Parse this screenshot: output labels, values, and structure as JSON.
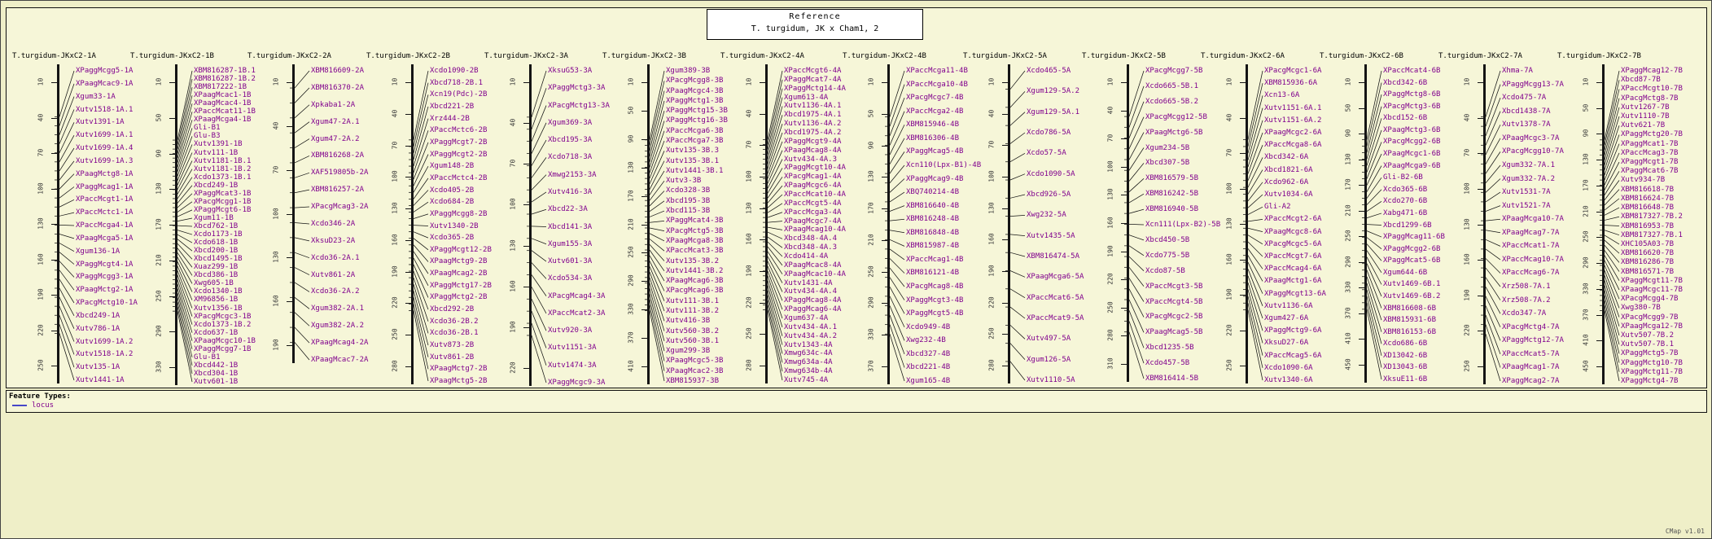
{
  "reference": {
    "title": "Reference",
    "subtitle": "T. turgidum, JK x Cham1, 2"
  },
  "footer": {
    "feature_types_label": "Feature Types:",
    "legend": [
      {
        "label": "locus",
        "type": "line"
      }
    ],
    "version": "CMap v1.01"
  },
  "colors": {
    "background": "#efefc8",
    "panel": "#f6f6d8",
    "locus_text": "#80008d",
    "line": "#141414",
    "legend_line": "#4848c8",
    "border": "#000000"
  },
  "maps": [
    {
      "name": "T.turgidum-JKxC2-1A",
      "ticks": [
        10,
        40,
        70,
        100,
        130,
        160,
        190,
        220,
        250
      ],
      "loci": [
        "XPaggMcgg5-1A",
        "XPaagMcac9-1A",
        "Xgum33-1A",
        "Xutv1518-1A.1",
        "Xutv1391-1A",
        "Xutv1699-1A.1",
        "Xutv1699-1A.4",
        "Xutv1699-1A.3",
        "XPaagMctg8-1A",
        "XPaggMcag1-1A",
        "XPaccMcgt1-1A",
        "XPaccMctc1-1A",
        "XPaccMcga4-1A",
        "XPaagMcga5-1A",
        "Xgum136-1A",
        "XPaggMcgt4-1A",
        "XPaggMcgg3-1A",
        "XPaagMctg2-1A",
        "XPacgMctg10-1A",
        "Xbcd249-1A",
        "Xutv786-1A",
        "Xutv1699-1A.2",
        "Xutv1518-1A.2",
        "Xutv135-1A",
        "Xutv1441-1A"
      ]
    },
    {
      "name": "T.turgidum-JKxC2-1B",
      "ticks": [
        10,
        50,
        90,
        130,
        170,
        210,
        250,
        290,
        330
      ],
      "loci": [
        "XBM816287-1B.1",
        "XBM816287-1B.2",
        "XBM817222-1B",
        "XPaagMcac1-1B",
        "XPaagMcac4-1B",
        "XPaccMcat11-1B",
        "XPaagMcga4-1B",
        "Gli-B1",
        "Glu-B3",
        "Xutv1391-1B",
        "Xutv111-1B",
        "Xutv1181-1B.1",
        "Xutv1181-1B.2",
        "Xcdo1373-1B.1",
        "Xbcd249-1B",
        "XPaggMcat3-1B",
        "XPacgMcgg1-1B",
        "XPaggMcgt6-1B",
        "Xgum11-1B",
        "Xbcd762-1B",
        "Xcdo1173-1B",
        "Xcdo618-1B",
        "Xbcd200-1B",
        "Xbcd1495-1B",
        "Xuaz299-1B",
        "Xbcd386-1B",
        "Xwg605-1B",
        "Xcdo1340-1B",
        "XM96856-1B",
        "Xutv1356-1B",
        "XPacgMcgc3-1B",
        "Xcdo1373-1B.2",
        "Xcdo637-1B",
        "XPaagMcgc10-1B",
        "XPaggMcgg7-1B",
        "Glu-B1",
        "Xbcd442-1B",
        "Xbcd304-1B",
        "Xutv601-1B"
      ]
    },
    {
      "name": "T.turgidum-JKxC2-2A",
      "ticks": [
        10,
        40,
        70,
        100,
        130,
        160,
        190
      ],
      "loci": [
        "XBM816609-2A",
        "XBM816370-2A",
        "Xpkaba1-2A",
        "Xgum47-2A.1",
        "Xgum47-2A.2",
        "XBM816268-2A",
        "XAF519805b-2A",
        "XBM816257-2A",
        "XPacgMcag3-2A",
        "Xcdo346-2A",
        "XksuD23-2A",
        "Xcdo36-2A.1",
        "Xutv861-2A",
        "Xcdo36-2A.2",
        "Xgum382-2A.1",
        "Xgum382-2A.2",
        "XPaagMcag4-2A",
        "XPaagMcac7-2A"
      ]
    },
    {
      "name": "T.turgidum-JKxC2-2B",
      "ticks": [
        10,
        40,
        70,
        100,
        130,
        160,
        190,
        220,
        250,
        280
      ],
      "loci": [
        "Xcdo1090-2B",
        "Xbcd718-2B.1",
        "Xcn19(Pdc)-2B",
        "Xbcd221-2B",
        "Xrz444-2B",
        "XPaccMctc6-2B",
        "XPaggMcgt7-2B",
        "XPaggMcgt2-2B",
        "Xgum148-2B",
        "XPaccMctc4-2B",
        "Xcdo405-2B",
        "Xcdo684-2B",
        "XPaggMcgg8-2B",
        "Xutv1340-2B",
        "Xcdo365-2B",
        "XPaggMcgt12-2B",
        "XPaagMctg9-2B",
        "XPaagMcag2-2B",
        "XPaggMctg17-2B",
        "XPaggMctg2-2B",
        "Xbcd292-2B",
        "Xcdo36-2B.2",
        "Xcdo36-2B.1",
        "Xutv873-2B",
        "Xutv861-2B",
        "XPaagMctg7-2B",
        "XPaagMctg5-2B"
      ]
    },
    {
      "name": "T.turgidum-JKxC2-3A",
      "ticks": [
        10,
        40,
        70,
        100,
        130,
        160,
        190,
        220
      ],
      "loci": [
        "XksuG53-3A",
        "XPaggMctg3-3A",
        "XPacgMctg13-3A",
        "Xgum369-3A",
        "Xbcd195-3A",
        "Xcdo718-3A",
        "Xmwg2153-3A",
        "Xutv416-3A",
        "Xbcd22-3A",
        "Xbcd141-3A",
        "Xgum155-3A",
        "Xutv601-3A",
        "Xcdo534-3A",
        "XPacgMcag4-3A",
        "XPaccMcat2-3A",
        "Xutv920-3A",
        "Xutv1151-3A",
        "Xutv1474-3A",
        "XPaggMcgc9-3A"
      ]
    },
    {
      "name": "T.turgidum-JKxC2-3B",
      "ticks": [
        10,
        50,
        90,
        130,
        170,
        210,
        250,
        290,
        330,
        370,
        410
      ],
      "loci": [
        "Xgum389-3B",
        "XPacgMcgg8-3B",
        "XPaagMcgc4-3B",
        "XPaggMctg1-3B",
        "XPaggMctg15-3B",
        "XPaggMctg16-3B",
        "XPaccMcga6-3B",
        "XPaccMcga7-3B",
        "Xutv135-3B.3",
        "Xutv135-3B.1",
        "Xutv1441-3B.1",
        "Xutv3-3B",
        "Xcdo328-3B",
        "Xbcd195-3B",
        "Xbcd115-3B",
        "XPaggMcat4-3B",
        "XPacgMctg5-3B",
        "XPaagMcga8-3B",
        "XPaccMcat3-3B",
        "Xutv135-3B.2",
        "Xutv1441-3B.2",
        "XPaagMcag6-3B",
        "XPacgMcag6-3B",
        "Xutv111-3B.1",
        "Xutv111-3B.2",
        "Xutv416-3B",
        "Xutv560-3B.2",
        "Xutv560-3B.1",
        "Xgum299-3B",
        "XPaagMcgc5-3B",
        "XPaagMcac2-3B",
        "XBM815937-3B"
      ]
    },
    {
      "name": "T.turgidum-JKxC2-4A",
      "ticks": [
        10,
        40,
        70,
        100,
        130,
        160,
        190,
        220,
        250,
        280
      ],
      "loci": [
        "XPaccMcgt6-4A",
        "XPaggMcat7-4A",
        "XPaggMctg14-4A",
        "Xgum613-4A",
        "Xutv1136-4A.1",
        "Xbcd1975-4A.1",
        "Xutv1136-4A.2",
        "Xbcd1975-4A.2",
        "XPaggMcgt9-4A",
        "XPaagMcag8-4A",
        "Xutv434-4A.3",
        "XPaggMcgt10-4A",
        "XPacgMcag1-4A",
        "XPaagMcgc6-4A",
        "XPaccMcat10-4A",
        "XPaccMcgt5-4A",
        "XPaccMcga3-4A",
        "XPaagMcgc7-4A",
        "XPaagMcag10-4A",
        "Xbcd348-4A.4",
        "Xbcd348-4A.3",
        "Xcdo414-4A",
        "XPaagMcac8-4A",
        "XPaagMcac10-4A",
        "Xutv1431-4A",
        "Xutv434-4A.4",
        "XPaggMcag8-4A",
        "XPaggMcag6-4A",
        "Xgum637-4A",
        "Xutv434-4A.1",
        "Xutv434-4A.2",
        "Xutv1343-4A",
        "Xmwg634c-4A",
        "Xmwg634a-4A",
        "Xmwg634b-4A",
        "Xutv745-4A"
      ]
    },
    {
      "name": "T.turgidum-JKxC2-4B",
      "ticks": [
        10,
        50,
        90,
        130,
        170,
        210,
        250,
        290,
        330,
        370
      ],
      "loci": [
        "XPaccMcga11-4B",
        "XPaccMcga10-4B",
        "XPacgMcgc7-4B",
        "XPaccMcga2-4B",
        "XBM815946-4B",
        "XBM816306-4B",
        "XPaggMcag5-4B",
        "Xcn110(Lpx-B1)-4B",
        "XPaggMcag9-4B",
        "XBQ740214-4B",
        "XBM816640-4B",
        "XBM816248-4B",
        "XBM816848-4B",
        "XBM815987-4B",
        "XPaccMcag1-4B",
        "XBM816121-4B",
        "XPacgMcag8-4B",
        "XPaggMcgt3-4B",
        "XPaggMcgt5-4B",
        "Xcdo949-4B",
        "Xwg232-4B",
        "Xbcd327-4B",
        "Xbcd221-4B",
        "Xgum165-4B"
      ]
    },
    {
      "name": "T.turgidum-JKxC2-5A",
      "ticks": [
        10,
        40,
        70,
        100,
        130,
        160,
        190,
        220,
        250,
        280
      ],
      "loci": [
        "Xcdo465-5A",
        "Xgum129-5A.2",
        "Xgum129-5A.1",
        "Xcdo786-5A",
        "Xcdo57-5A",
        "Xcdo1090-5A",
        "Xbcd926-5A",
        "Xwg232-5A",
        "Xutv1435-5A",
        "XBM816474-5A",
        "XPaagMcga6-5A",
        "XPaccMcat6-5A",
        "XPaccMcat9-5A",
        "Xutv497-5A",
        "Xgum126-5A",
        "Xutv1110-5A"
      ]
    },
    {
      "name": "T.turgidum-JKxC2-5B",
      "ticks": [
        10,
        40,
        70,
        100,
        130,
        160,
        190,
        220,
        250,
        280,
        310
      ],
      "loci": [
        "XPacgMcgg7-5B",
        "Xcdo665-5B.1",
        "Xcdo665-5B.2",
        "XPacgMcgg12-5B",
        "XPaagMctg6-5B",
        "Xgum234-5B",
        "Xbcd307-5B",
        "XBM816579-5B",
        "XBM816242-5B",
        "XBM816940-5B",
        "Xcn111(Lpx-B2)-5B",
        "Xbcd450-5B",
        "Xcdo775-5B",
        "Xcdo87-5B",
        "XPaccMcgt3-5B",
        "XPaccMcgt4-5B",
        "XPacgMcgc2-5B",
        "XPaagMcag5-5B",
        "Xbcd1235-5B",
        "Xcdo457-5B",
        "XBM816414-5B"
      ]
    },
    {
      "name": "T.turgidum-JKxC2-6A",
      "ticks": [
        10,
        40,
        70,
        100,
        130,
        160,
        190,
        220,
        250
      ],
      "loci": [
        "XPacgMcgc1-6A",
        "XBM815936-6A",
        "Xcn13-6A",
        "Xutv1151-6A.1",
        "Xutv1151-6A.2",
        "XPaagMcgc2-6A",
        "XPaccMcga8-6A",
        "Xbcd342-6A",
        "Xbcd1821-6A",
        "Xcdo962-6A",
        "Xutv1034-6A",
        "Gli-A2",
        "XPaccMcgt2-6A",
        "XPaagMcgc8-6A",
        "XPacgMcgc5-6A",
        "XPaccMcgt7-6A",
        "XPaccMcag4-6A",
        "XPaagMctg1-6A",
        "XPaggMcgt13-6A",
        "Xutv1136-6A",
        "Xgum427-6A",
        "XPaggMctg9-6A",
        "XksuD27-6A",
        "XPaccMcag5-6A",
        "Xcdo1090-6A",
        "Xutv1340-6A"
      ]
    },
    {
      "name": "T.turgidum-JKxC2-6B",
      "ticks": [
        10,
        50,
        90,
        130,
        170,
        210,
        250,
        290,
        330,
        370,
        410,
        450
      ],
      "loci": [
        "XPaccMcat4-6B",
        "Xbcd342-6B",
        "XPaggMctg8-6B",
        "XPacgMctg3-6B",
        "Xbcd152-6B",
        "XPaagMctg3-6B",
        "XPacgMcgg2-6B",
        "XPaagMcgc1-6B",
        "XPaagMcga9-6B",
        "Gli-B2-6B",
        "Xcdo365-6B",
        "Xcdo270-6B",
        "Xabg471-6B",
        "Xbcd1299-6B",
        "XPaggMcag11-6B",
        "XPaggMcgg2-6B",
        "XPaggMcat5-6B",
        "Xgum644-6B",
        "Xutv1469-6B.1",
        "Xutv1469-6B.2",
        "XBM816608-6B",
        "XBM815931-6B",
        "XBM816153-6B",
        "Xcdo686-6B",
        "XD13042-6B",
        "XD13043-6B",
        "XksuE11-6B"
      ]
    },
    {
      "name": "T.turgidum-JKxC2-7A",
      "ticks": [
        10,
        40,
        70,
        100,
        130,
        160,
        190,
        220,
        250
      ],
      "loci": [
        "Xhma-7A",
        "XPaggMcgg13-7A",
        "Xcdo475-7A",
        "Xbcd1438-7A",
        "Xutv1378-7A",
        "XPaagMcgc3-7A",
        "XPacgMcgg10-7A",
        "Xgum332-7A.1",
        "Xgum332-7A.2",
        "Xutv1531-7A",
        "Xutv1521-7A",
        "XPaagMcga10-7A",
        "XPaagMcag7-7A",
        "XPaccMcat1-7A",
        "XPaccMcag10-7A",
        "XPaccMcag6-7A",
        "Xrz508-7A.1",
        "Xrz508-7A.2",
        "Xcdo347-7A",
        "XPacgMctg4-7A",
        "XPaggMctg12-7A",
        "XPaccMcat5-7A",
        "XPaagMcag1-7A",
        "XPaggMcag2-7A"
      ]
    },
    {
      "name": "T.turgidum-JKxC2-7B",
      "ticks": [
        10,
        50,
        90,
        130,
        170,
        210,
        250,
        290,
        330,
        370,
        410,
        450
      ],
      "loci": [
        "XPaggMcag12-7B",
        "Xbcd87-7B",
        "XPaccMcgt10-7B",
        "XPacgMctg8-7B",
        "Xutv1267-7B",
        "Xutv1110-7B",
        "Xutv621-7B",
        "XPaggMctg20-7B",
        "XPaggMcat1-7B",
        "XPaccMcag3-7B",
        "XPaggMcgt1-7B",
        "XPaggMcat6-7B",
        "Xutv934-7B",
        "XBM816618-7B",
        "XBM816624-7B",
        "XBM816648-7B",
        "XBM817327-7B.2",
        "XBM816953-7B",
        "XBM817327-7B.1",
        "XHC105A03-7B",
        "XBM816620-7B",
        "XBM816286-7B",
        "XBM816571-7B",
        "XPaggMcgt11-7B",
        "XPaagMcgc11-7B",
        "XPacgMcgg4-7B",
        "Xwg380-7B",
        "XPacgMcgg9-7B",
        "XPaagMcga12-7B",
        "Xutv507-7B.2",
        "Xutv507-7B.1",
        "XPaggMctg5-7B",
        "XPaggMctg10-7B",
        "XPaggMctg11-7B",
        "XPaggMctg4-7B"
      ]
    }
  ]
}
